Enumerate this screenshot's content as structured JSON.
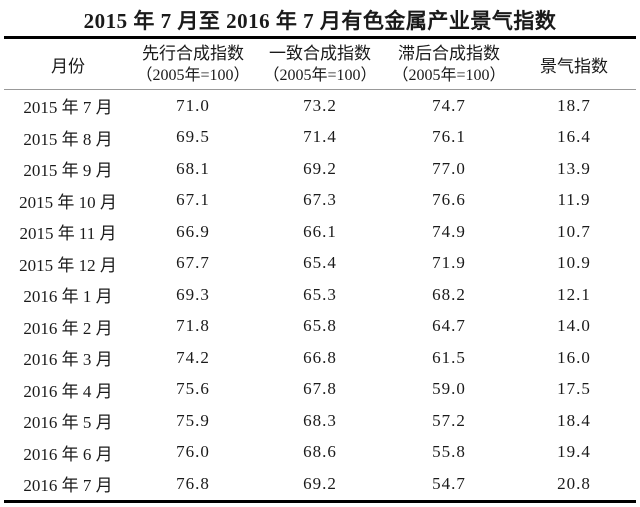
{
  "title": "2015 年 7 月至 2016 年 7 月有色金属产业景气指数",
  "table": {
    "headers": {
      "month": "月份",
      "leading_line1": "先行合成指数",
      "leading_line2": "（2005年=100）",
      "coincident_line1": "一致合成指数",
      "coincident_line2": "（2005年=100）",
      "lagging_line1": "滞后合成指数",
      "lagging_line2": "（2005年=100）",
      "prosperity": "景气指数"
    },
    "rows": [
      {
        "month": "2015 年 7 月",
        "leading": "71.0",
        "coincident": "73.2",
        "lagging": "74.7",
        "prosperity": "18.7"
      },
      {
        "month": "2015 年 8 月",
        "leading": "69.5",
        "coincident": "71.4",
        "lagging": "76.1",
        "prosperity": "16.4"
      },
      {
        "month": "2015 年 9 月",
        "leading": "68.1",
        "coincident": "69.2",
        "lagging": "77.0",
        "prosperity": "13.9"
      },
      {
        "month": "2015 年 10 月",
        "leading": "67.1",
        "coincident": "67.3",
        "lagging": "76.6",
        "prosperity": "11.9"
      },
      {
        "month": "2015 年 11 月",
        "leading": "66.9",
        "coincident": "66.1",
        "lagging": "74.9",
        "prosperity": "10.7"
      },
      {
        "month": "2015 年 12 月",
        "leading": "67.7",
        "coincident": "65.4",
        "lagging": "71.9",
        "prosperity": "10.9"
      },
      {
        "month": "2016 年 1 月",
        "leading": "69.3",
        "coincident": "65.3",
        "lagging": "68.2",
        "prosperity": "12.1"
      },
      {
        "month": "2016 年 2 月",
        "leading": "71.8",
        "coincident": "65.8",
        "lagging": "64.7",
        "prosperity": "14.0"
      },
      {
        "month": "2016 年 3 月",
        "leading": "74.2",
        "coincident": "66.8",
        "lagging": "61.5",
        "prosperity": "16.0"
      },
      {
        "month": "2016 年 4 月",
        "leading": "75.6",
        "coincident": "67.8",
        "lagging": "59.0",
        "prosperity": "17.5"
      },
      {
        "month": "2016 年 5 月",
        "leading": "75.9",
        "coincident": "68.3",
        "lagging": "57.2",
        "prosperity": "18.4"
      },
      {
        "month": "2016 年 6 月",
        "leading": "76.0",
        "coincident": "68.6",
        "lagging": "55.8",
        "prosperity": "19.4"
      },
      {
        "month": "2016 年 7 月",
        "leading": "76.8",
        "coincident": "69.2",
        "lagging": "54.7",
        "prosperity": "20.8"
      }
    ]
  },
  "colors": {
    "background": "#ffffff",
    "text": "#1a1a1a",
    "thick_rule": "#000000",
    "thin_rule": "#999999"
  },
  "chart_data": {
    "type": "table",
    "title": "2015 年 7 月至 2016 年 7 月有色金属产业景气指数",
    "columns": [
      "月份",
      "先行合成指数（2005年=100）",
      "一致合成指数（2005年=100）",
      "滞后合成指数（2005年=100）",
      "景气指数"
    ],
    "categories": [
      "2015年7月",
      "2015年8月",
      "2015年9月",
      "2015年10月",
      "2015年11月",
      "2015年12月",
      "2016年1月",
      "2016年2月",
      "2016年3月",
      "2016年4月",
      "2016年5月",
      "2016年6月",
      "2016年7月"
    ],
    "series": [
      {
        "name": "先行合成指数（2005年=100）",
        "values": [
          71.0,
          69.5,
          68.1,
          67.1,
          66.9,
          67.7,
          69.3,
          71.8,
          74.2,
          75.6,
          75.9,
          76.0,
          76.8
        ]
      },
      {
        "name": "一致合成指数（2005年=100）",
        "values": [
          73.2,
          71.4,
          69.2,
          67.3,
          66.1,
          65.4,
          65.3,
          65.8,
          66.8,
          67.8,
          68.3,
          68.6,
          69.2
        ]
      },
      {
        "name": "滞后合成指数（2005年=100）",
        "values": [
          74.7,
          76.1,
          77.0,
          76.6,
          74.9,
          71.9,
          68.2,
          64.7,
          61.5,
          59.0,
          57.2,
          55.8,
          54.7
        ]
      },
      {
        "name": "景气指数",
        "values": [
          18.7,
          16.4,
          13.9,
          11.9,
          10.7,
          10.9,
          12.1,
          14.0,
          16.0,
          17.5,
          18.4,
          19.4,
          20.8
        ]
      }
    ]
  }
}
